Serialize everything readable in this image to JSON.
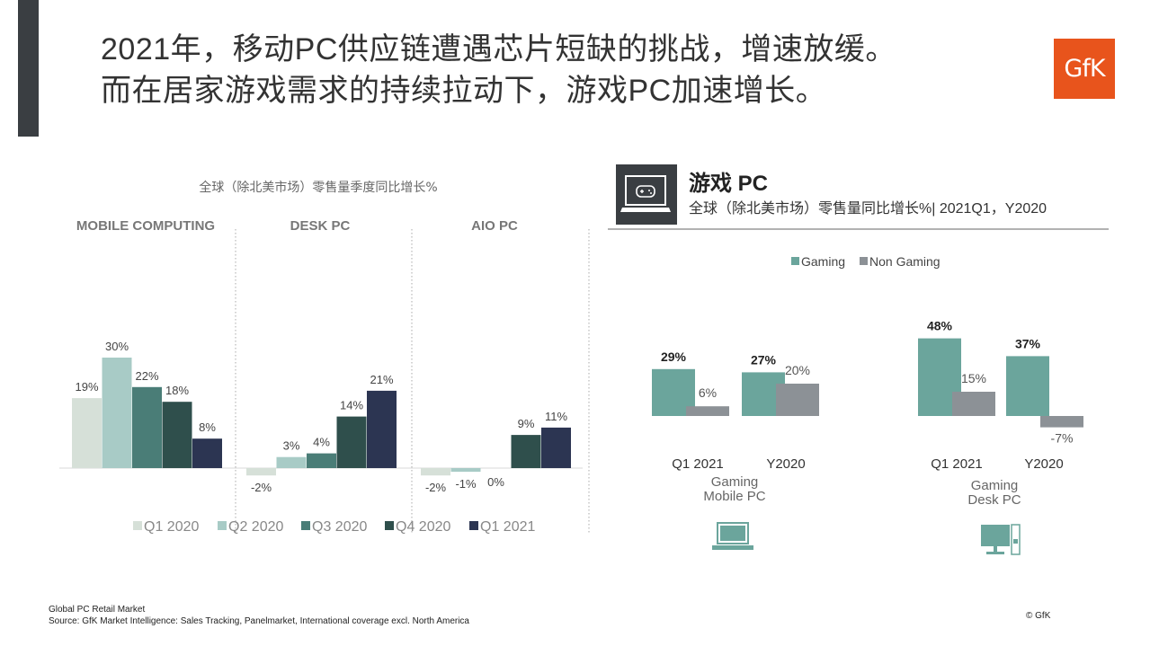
{
  "title": {
    "line1": "2021年，移动PC供应链遭遇芯片短缺的挑战，增速放缓。",
    "line2": "而在居家游戏需求的持续拉动下，游戏PC加速增长。"
  },
  "logo_text": "GfK",
  "colors": {
    "q1_2020": "#d6e0d8",
    "q2_2020": "#a8cbc6",
    "q3_2020": "#4a7d77",
    "q4_2020": "#2f4f4c",
    "q1_2021": "#2c3552",
    "gaming": "#6ba59c",
    "non_gaming": "#8c9196",
    "header_accent": "#3a3e42"
  },
  "chart_data": [
    {
      "type": "bar",
      "title": "全球（除北美市场）零售量季度同比增长%",
      "groups": [
        {
          "name": "MOBILE COMPUTING",
          "values": [
            19,
            30,
            22,
            18,
            8
          ],
          "labels": [
            "19%",
            "30%",
            "22%",
            "18%",
            "8%"
          ]
        },
        {
          "name": "DESK PC",
          "values": [
            -2,
            3,
            4,
            14,
            21
          ],
          "labels": [
            "-2%",
            "3%",
            "4%",
            "14%",
            "21%"
          ]
        },
        {
          "name": "AIO PC",
          "values": [
            -2,
            -1,
            0,
            9,
            11
          ],
          "labels": [
            "-2%",
            "-1%",
            "0%",
            "9%",
            "11%"
          ]
        }
      ],
      "series": [
        "Q1 2020",
        "Q2 2020",
        "Q3 2020",
        "Q4 2020",
        "Q1 2021"
      ],
      "legend_position": "bottom"
    },
    {
      "type": "bar",
      "panel_title": "游戏 PC",
      "subtitle": "全球（除北美市场）零售量同比增长%| 2021Q1，Y2020",
      "legend": [
        "Gaming",
        "Non Gaming"
      ],
      "legend_position": "top",
      "groups": [
        {
          "name_lines": [
            "Gaming",
            "Mobile PC"
          ],
          "icon": "laptop-icon",
          "categories": [
            "Q1 2021",
            "Y2020"
          ],
          "series": [
            {
              "name": "Gaming",
              "values": [
                29,
                27
              ],
              "labels": [
                "29%",
                "27%"
              ]
            },
            {
              "name": "Non Gaming",
              "values": [
                6,
                20
              ],
              "labels": [
                "6%",
                "20%"
              ]
            }
          ]
        },
        {
          "name_lines": [
            "Gaming",
            "Desk PC"
          ],
          "icon": "desktop-icon",
          "categories": [
            "Q1 2021",
            "Y2020"
          ],
          "series": [
            {
              "name": "Gaming",
              "values": [
                48,
                37
              ],
              "labels": [
                "48%",
                "37%"
              ]
            },
            {
              "name": "Non Gaming",
              "values": [
                15,
                -7
              ],
              "labels": [
                "15%",
                "-7%"
              ]
            }
          ]
        }
      ]
    }
  ],
  "footer": {
    "line1": "Global PC Retail Market",
    "line2": "Source: GfK Market Intelligence: Sales Tracking, Panelmarket, International coverage excl. North America"
  },
  "copyright": "© GfK"
}
